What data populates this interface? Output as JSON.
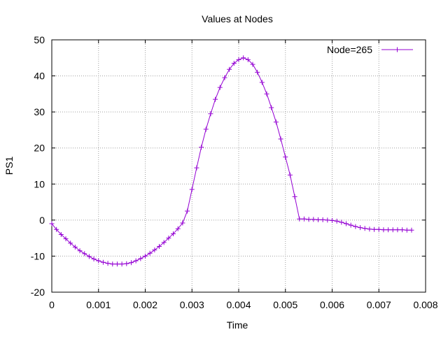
{
  "chart_data": {
    "type": "line",
    "title": "Values at Nodes",
    "xlabel": "Time",
    "ylabel": "PS1",
    "xlim": [
      0,
      0.008
    ],
    "ylim": [
      -20,
      50
    ],
    "xticks": [
      "0",
      "0.001",
      "0.002",
      "0.003",
      "0.004",
      "0.005",
      "0.006",
      "0.007",
      "0.008"
    ],
    "yticks": [
      "-20",
      "-10",
      "0",
      "10",
      "20",
      "30",
      "40",
      "50"
    ],
    "grid": true,
    "legend_position": "top-right",
    "line_color": "#9400d3",
    "series": [
      {
        "name": "Node=265",
        "points": [
          [
            0.0,
            -1.0
          ],
          [
            0.0001,
            -2.6
          ],
          [
            0.0002,
            -4.0
          ],
          [
            0.0003,
            -5.2
          ],
          [
            0.0004,
            -6.4
          ],
          [
            0.0005,
            -7.5
          ],
          [
            0.0006,
            -8.5
          ],
          [
            0.0007,
            -9.3
          ],
          [
            0.0008,
            -10.1
          ],
          [
            0.0009,
            -10.8
          ],
          [
            0.001,
            -11.3
          ],
          [
            0.0011,
            -11.7
          ],
          [
            0.0012,
            -12.0
          ],
          [
            0.0013,
            -12.2
          ],
          [
            0.0014,
            -12.2
          ],
          [
            0.0015,
            -12.2
          ],
          [
            0.0016,
            -12.1
          ],
          [
            0.0017,
            -11.8
          ],
          [
            0.0018,
            -11.3
          ],
          [
            0.0019,
            -10.7
          ],
          [
            0.002,
            -10.0
          ],
          [
            0.0021,
            -9.2
          ],
          [
            0.0022,
            -8.3
          ],
          [
            0.0023,
            -7.3
          ],
          [
            0.0024,
            -6.2
          ],
          [
            0.0025,
            -5.0
          ],
          [
            0.0026,
            -3.8
          ],
          [
            0.0027,
            -2.4
          ],
          [
            0.0028,
            -0.8
          ],
          [
            0.0029,
            2.5
          ],
          [
            0.003,
            8.5
          ],
          [
            0.0031,
            14.5
          ],
          [
            0.0032,
            20.2
          ],
          [
            0.0033,
            25.2
          ],
          [
            0.0034,
            29.5
          ],
          [
            0.0035,
            33.5
          ],
          [
            0.0036,
            36.8
          ],
          [
            0.0037,
            39.5
          ],
          [
            0.0038,
            41.8
          ],
          [
            0.0039,
            43.5
          ],
          [
            0.004,
            44.5
          ],
          [
            0.0041,
            45.0
          ],
          [
            0.0042,
            44.5
          ],
          [
            0.0043,
            43.2
          ],
          [
            0.0044,
            41.0
          ],
          [
            0.0045,
            38.2
          ],
          [
            0.0046,
            35.0
          ],
          [
            0.0047,
            31.2
          ],
          [
            0.0048,
            27.2
          ],
          [
            0.0049,
            22.5
          ],
          [
            0.005,
            17.5
          ],
          [
            0.0051,
            12.5
          ],
          [
            0.0052,
            6.5
          ],
          [
            0.0053,
            0.3
          ],
          [
            0.0054,
            0.3
          ],
          [
            0.0055,
            0.2
          ],
          [
            0.0056,
            0.2
          ],
          [
            0.0057,
            0.1
          ],
          [
            0.0058,
            0.1
          ],
          [
            0.0059,
            0.0
          ],
          [
            0.006,
            -0.1
          ],
          [
            0.0061,
            -0.3
          ],
          [
            0.0062,
            -0.6
          ],
          [
            0.0063,
            -1.0
          ],
          [
            0.0064,
            -1.4
          ],
          [
            0.0065,
            -1.8
          ],
          [
            0.0066,
            -2.1
          ],
          [
            0.0067,
            -2.3
          ],
          [
            0.0068,
            -2.5
          ],
          [
            0.0069,
            -2.6
          ],
          [
            0.007,
            -2.6
          ],
          [
            0.0071,
            -2.7
          ],
          [
            0.0072,
            -2.7
          ],
          [
            0.0073,
            -2.7
          ],
          [
            0.0074,
            -2.7
          ],
          [
            0.0075,
            -2.7
          ],
          [
            0.0076,
            -2.8
          ],
          [
            0.0077,
            -2.8
          ]
        ]
      }
    ]
  }
}
